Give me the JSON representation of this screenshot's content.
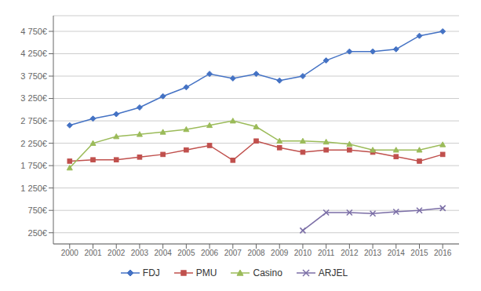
{
  "chart_data": {
    "type": "line",
    "x": [
      2000,
      2001,
      2002,
      2003,
      2004,
      2005,
      2006,
      2007,
      2008,
      2009,
      2010,
      2011,
      2012,
      2013,
      2014,
      2015,
      2016
    ],
    "series": [
      {
        "name": "FDJ",
        "color": "#4472C4",
        "marker": "diamond",
        "values": [
          2650,
          2800,
          2900,
          3050,
          3300,
          3500,
          3800,
          3700,
          3800,
          3650,
          3750,
          4100,
          4300,
          4300,
          4350,
          4650,
          4750
        ]
      },
      {
        "name": "PMU",
        "color": "#C0504D",
        "marker": "square",
        "values": [
          1850,
          1880,
          1880,
          1940,
          2000,
          2100,
          2200,
          1870,
          2300,
          2150,
          2050,
          2100,
          2100,
          2050,
          1950,
          1850,
          2000
        ]
      },
      {
        "name": "Casino",
        "color": "#9BBB59",
        "marker": "triangle",
        "values": [
          1700,
          2250,
          2400,
          2450,
          2500,
          2560,
          2650,
          2750,
          2620,
          2300,
          2300,
          2280,
          2230,
          2100,
          2100,
          2100,
          2220
        ]
      },
      {
        "name": "ARJEL",
        "color": "#7B6EA6",
        "marker": "x",
        "values": [
          null,
          null,
          null,
          null,
          null,
          null,
          null,
          null,
          null,
          null,
          300,
          700,
          700,
          680,
          720,
          750,
          800
        ]
      }
    ],
    "xlim": [
      1999.3,
      2016.7
    ],
    "xticks": [
      2000,
      2001,
      2002,
      2003,
      2004,
      2005,
      2006,
      2007,
      2008,
      2009,
      2010,
      2011,
      2012,
      2013,
      2014,
      2015,
      2016
    ],
    "ylim": [
      0,
      5100
    ],
    "yticks": [
      {
        "value": 250,
        "label": "250€"
      },
      {
        "value": 750,
        "label": "750€"
      },
      {
        "value": 1250,
        "label": "1 250€"
      },
      {
        "value": 1750,
        "label": "1 750€"
      },
      {
        "value": 2250,
        "label": "2 250€"
      },
      {
        "value": 2750,
        "label": "2 750€"
      },
      {
        "value": 3250,
        "label": "3 250€"
      },
      {
        "value": 3750,
        "label": "3 750€"
      },
      {
        "value": 4250,
        "label": "4 250€"
      },
      {
        "value": 4750,
        "label": "4 750€"
      }
    ],
    "grid": true,
    "legend": "bottom"
  }
}
